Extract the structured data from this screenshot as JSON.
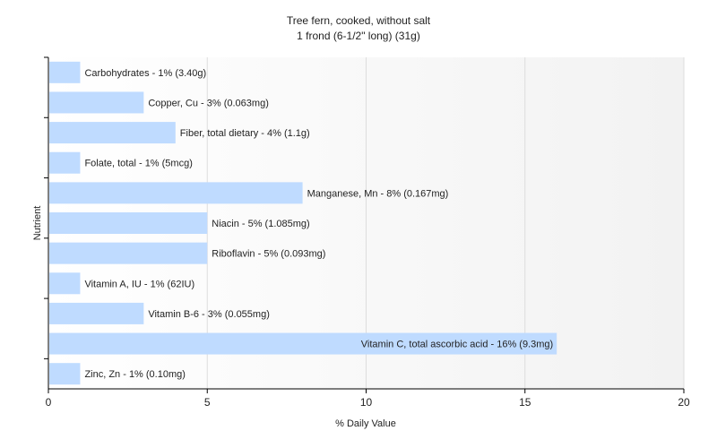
{
  "chart_data": {
    "type": "bar",
    "orientation": "horizontal",
    "title": "Tree fern, cooked, without salt",
    "subtitle": "1 frond (6-1/2\" long) (31g)",
    "xlabel": "% Daily Value",
    "ylabel": "Nutrient",
    "xlim": [
      0,
      20
    ],
    "xticks": [
      0,
      5,
      10,
      15,
      20
    ],
    "grid": true,
    "categories": [
      "Carbohydrates",
      "Copper, Cu",
      "Fiber, total dietary",
      "Folate, total",
      "Manganese, Mn",
      "Niacin",
      "Riboflavin",
      "Vitamin A, IU",
      "Vitamin B-6",
      "Vitamin C, total ascorbic acid",
      "Zinc, Zn"
    ],
    "values": [
      1,
      3,
      4,
      1,
      8,
      5,
      5,
      1,
      3,
      16,
      1
    ],
    "bar_labels": [
      "Carbohydrates - 1% (3.40g)",
      "Copper, Cu - 3% (0.063mg)",
      "Fiber, total dietary - 4% (1.1g)",
      "Folate, total - 1% (5mcg)",
      "Manganese, Mn - 8% (0.167mg)",
      "Niacin - 5% (1.085mg)",
      "Riboflavin - 5% (0.093mg)",
      "Vitamin A, IU - 1% (62IU)",
      "Vitamin B-6 - 3% (0.055mg)",
      "Vitamin C, total ascorbic acid - 16% (9.3mg)",
      "Zinc, Zn - 1% (0.10mg)"
    ],
    "colors": {
      "bar": "#bfdbff",
      "axis": "#000000",
      "grid": "#dddddd"
    }
  }
}
